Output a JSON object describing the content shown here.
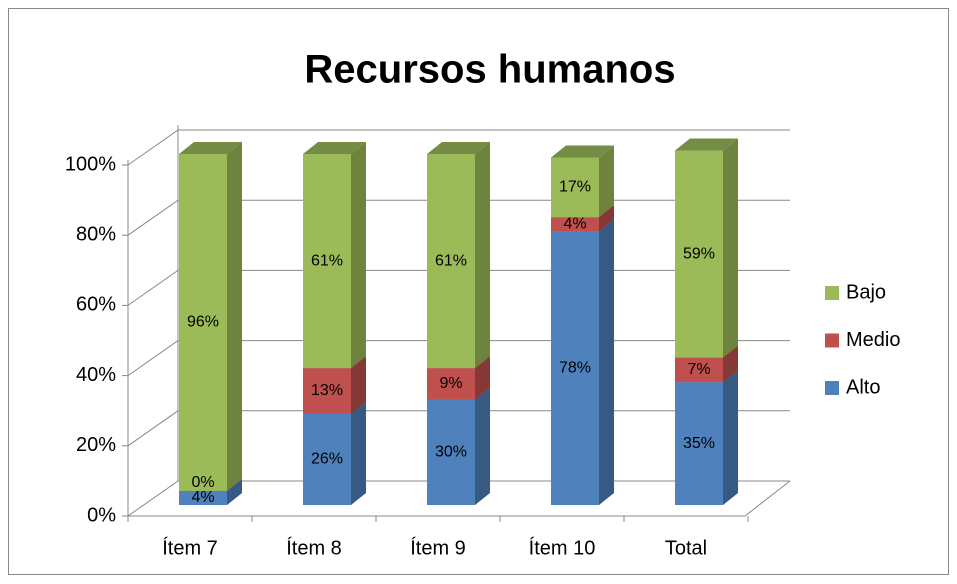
{
  "chart_data": {
    "type": "bar",
    "stacked": true,
    "title": "Recursos humanos",
    "categories": [
      "Ítem 7",
      "Ítem 8",
      "Ítem 9",
      "Ítem 10",
      "Total"
    ],
    "series": [
      {
        "name": "Alto",
        "color": "#4f81bd",
        "values": [
          4,
          26,
          30,
          78,
          35
        ],
        "value_labels": [
          "4%",
          "26%",
          "30%",
          "78%",
          "35%"
        ]
      },
      {
        "name": "Medio",
        "color": "#c0504d",
        "values": [
          0,
          13,
          9,
          4,
          7
        ],
        "value_labels": [
          "0%",
          "13%",
          "9%",
          "4%",
          "7%"
        ]
      },
      {
        "name": "Bajo",
        "color": "#9bbb59",
        "values": [
          96,
          61,
          61,
          17,
          59
        ],
        "value_labels": [
          "96%",
          "61%",
          "61%",
          "17%",
          "59%"
        ]
      }
    ],
    "ylim": [
      0,
      100
    ],
    "yticks": [
      {
        "value": 0,
        "label": "0%"
      },
      {
        "value": 20,
        "label": "20%"
      },
      {
        "value": 40,
        "label": "40%"
      },
      {
        "value": 60,
        "label": "60%"
      },
      {
        "value": 80,
        "label": "80%"
      },
      {
        "value": 100,
        "label": "100%"
      }
    ],
    "grid": true,
    "legend": "right"
  }
}
